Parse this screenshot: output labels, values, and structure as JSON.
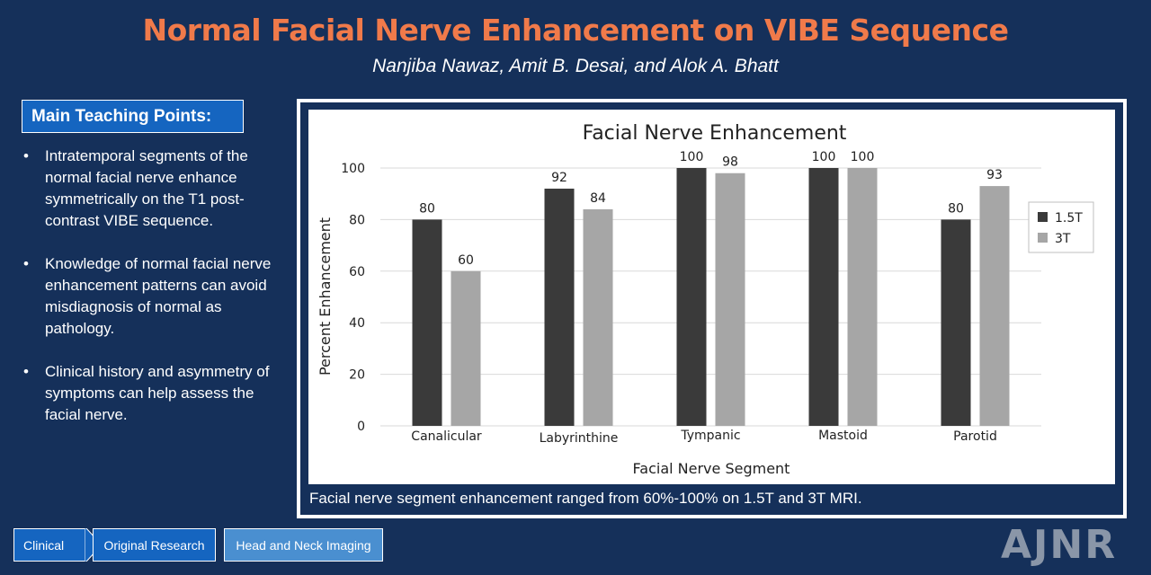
{
  "header": {
    "title": "Normal Facial Nerve Enhancement on VIBE Sequence",
    "authors": "Nanjiba Nawaz, Amit B. Desai, and Alok A. Bhatt"
  },
  "teaching": {
    "heading": "Main Teaching Points:",
    "points": [
      "Intratemporal segments of the normal facial nerve enhance symmetrically on the T1 post-contrast VIBE sequence.",
      "Knowledge of normal facial nerve enhancement patterns can avoid misdiagnosis of normal as pathology.",
      "Clinical history and asymmetry of symptoms can help assess the facial nerve."
    ]
  },
  "caption": "Facial nerve segment enhancement ranged from 60%-100% on 1.5T and 3T MRI.",
  "tags": {
    "clinical": "Clinical",
    "research": "Original Research",
    "head_neck": "Head and Neck Imaging"
  },
  "logo": "AJNR",
  "chart_data": {
    "type": "bar",
    "title": "Facial Nerve Enhancement",
    "xlabel": "Facial Nerve Segment",
    "ylabel": "Percent Enhancement",
    "categories": [
      "Canalicular",
      "Labyrinthine",
      "Tympanic",
      "Mastoid",
      "Parotid"
    ],
    "series": [
      {
        "name": "1.5T",
        "values": [
          80,
          92,
          100,
          100,
          80
        ],
        "color": "#3a3a3a"
      },
      {
        "name": "3T",
        "values": [
          60,
          84,
          98,
          100,
          93
        ],
        "color": "#a6a6a6"
      }
    ],
    "ylim": [
      0,
      100
    ],
    "yticks": [
      0,
      20,
      40,
      60,
      80,
      100
    ],
    "grid": true,
    "legend_position": "right"
  }
}
